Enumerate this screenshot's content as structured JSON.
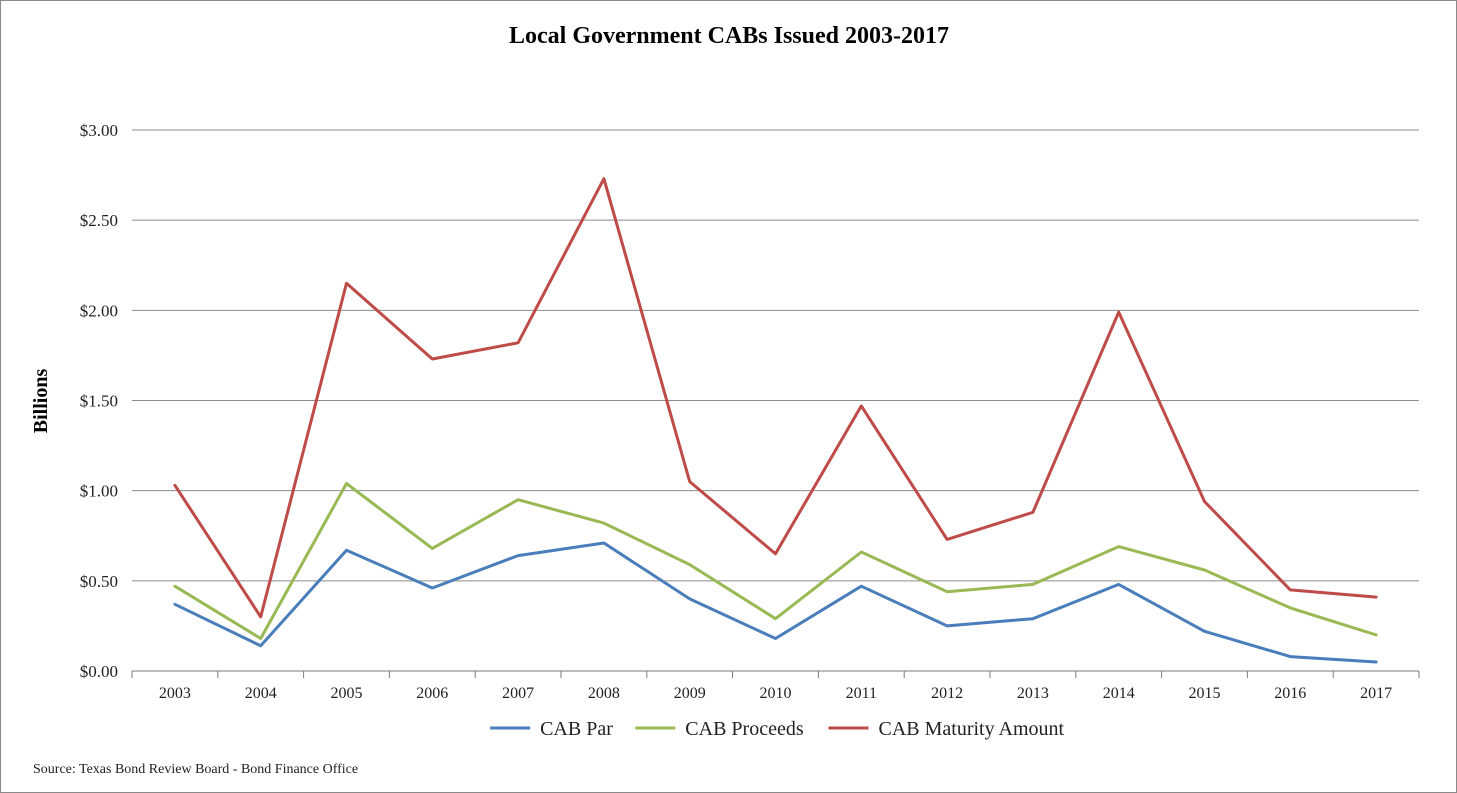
{
  "chart_data": {
    "type": "line",
    "title": "Local Government CABs Issued 2003-2017",
    "ylabel": "Billions",
    "xlabel": "",
    "source": "Source: Texas Bond Review Board - Bond Finance Office",
    "categories": [
      "2003",
      "2004",
      "2005",
      "2006",
      "2007",
      "2008",
      "2009",
      "2010",
      "2011",
      "2012",
      "2013",
      "2014",
      "2015",
      "2016",
      "2017"
    ],
    "ylim": [
      0,
      3
    ],
    "yticks": [
      0,
      0.5,
      1,
      1.5,
      2,
      2.5,
      3
    ],
    "ytick_labels": [
      "$0.00",
      "$0.50",
      "$1.00",
      "$1.50",
      "$2.00",
      "$2.50",
      "$3.00"
    ],
    "grid": true,
    "legend_position": "bottom",
    "series": [
      {
        "name": "CAB Par",
        "color": "#4a7ebb",
        "values": [
          0.37,
          0.14,
          0.67,
          0.46,
          0.64,
          0.71,
          0.4,
          0.18,
          0.47,
          0.25,
          0.29,
          0.48,
          0.22,
          0.08,
          0.05
        ]
      },
      {
        "name": "CAB Proceeds",
        "color": "#98b954",
        "values": [
          0.47,
          0.18,
          1.04,
          0.68,
          0.95,
          0.82,
          0.59,
          0.29,
          0.66,
          0.44,
          0.48,
          0.69,
          0.56,
          0.35,
          0.2
        ]
      },
      {
        "name": "CAB Maturity Amount",
        "color": "#be4b48",
        "values": [
          1.03,
          0.3,
          2.15,
          1.73,
          1.82,
          2.73,
          1.05,
          0.65,
          1.47,
          0.73,
          0.88,
          1.99,
          0.94,
          0.45,
          0.41
        ]
      }
    ]
  }
}
